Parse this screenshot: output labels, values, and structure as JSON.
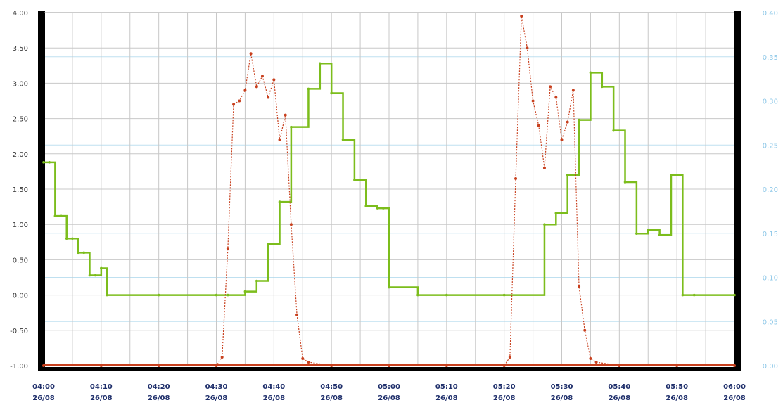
{
  "chart_data": {
    "type": "line",
    "xlim": [
      "04:00",
      "06:00"
    ],
    "ylim_left": [
      -1.0,
      4.0
    ],
    "ylim_right": [
      0.0,
      0.4
    ],
    "grid": true,
    "legend": "none",
    "colors": {
      "green_series": "#7cbd1c",
      "red_series": "#c8401e",
      "left_tick": "#333333",
      "right_tick": "#8ec8e8",
      "x_tick": "#1f2f6b",
      "grid_gray": "#c8c8c8",
      "grid_blue": "#bfe0f0"
    },
    "left_ticks": [
      "4.00",
      "3.50",
      "3.00",
      "2.50",
      "2.00",
      "1.50",
      "1.00",
      "0.50",
      "0.00",
      "-0.50",
      "-1.00"
    ],
    "right_ticks": [
      "0.40",
      "0.35",
      "0.30",
      "0.25",
      "0.20",
      "0.15",
      "0.10",
      "0.05",
      "0.00"
    ],
    "x_ticks": [
      {
        "time": "04:00",
        "date": "26/08"
      },
      {
        "time": "04:10",
        "date": "26/08"
      },
      {
        "time": "04:20",
        "date": "26/08"
      },
      {
        "time": "04:30",
        "date": "26/08"
      },
      {
        "time": "04:40",
        "date": "26/08"
      },
      {
        "time": "04:50",
        "date": "26/08"
      },
      {
        "time": "05:00",
        "date": "26/08"
      },
      {
        "time": "05:10",
        "date": "26/08"
      },
      {
        "time": "05:20",
        "date": "26/08"
      },
      {
        "time": "05:30",
        "date": "26/08"
      },
      {
        "time": "05:40",
        "date": "26/08"
      },
      {
        "time": "05:50",
        "date": "26/08"
      },
      {
        "time": "06:00",
        "date": "26/08"
      }
    ],
    "series": [
      {
        "axis": "left",
        "style": "step-solid",
        "x": [
          "04:00",
          "04:01",
          "04:02",
          "04:03",
          "04:04",
          "04:05",
          "04:06",
          "04:07",
          "04:08",
          "04:09",
          "04:10",
          "04:11",
          "04:20",
          "04:30",
          "04:32",
          "04:35",
          "04:37",
          "04:39",
          "04:41",
          "04:43",
          "04:46",
          "04:48",
          "04:50",
          "04:52",
          "04:54",
          "04:56",
          "04:58",
          "04:59",
          "05:00",
          "05:05",
          "05:10",
          "05:20",
          "05:27",
          "05:29",
          "05:31",
          "05:33",
          "05:35",
          "05:37",
          "05:39",
          "05:41",
          "05:43",
          "05:45",
          "05:47",
          "05:49",
          "05:51",
          "05:53",
          "06:00"
        ],
        "values": [
          1.88,
          1.88,
          1.12,
          1.12,
          0.8,
          0.8,
          0.6,
          0.6,
          0.28,
          0.28,
          0.38,
          0.0,
          0.0,
          0.0,
          0.0,
          0.05,
          0.2,
          0.72,
          1.32,
          2.38,
          2.92,
          3.28,
          2.86,
          2.2,
          1.63,
          1.26,
          1.23,
          1.23,
          0.11,
          0.0,
          0.0,
          0.0,
          1.0,
          1.16,
          1.7,
          2.48,
          3.15,
          2.95,
          2.33,
          1.6,
          0.87,
          0.92,
          0.85,
          1.7,
          0.0,
          0.0,
          0.0
        ]
      },
      {
        "axis": "left",
        "style": "dotted-markers",
        "x": [
          "04:00",
          "04:10",
          "04:20",
          "04:30",
          "04:31",
          "04:32",
          "04:33",
          "04:34",
          "04:35",
          "04:36",
          "04:37",
          "04:38",
          "04:39",
          "04:40",
          "04:41",
          "04:42",
          "04:43",
          "04:44",
          "04:45",
          "04:46",
          "04:50",
          "05:00",
          "05:10",
          "05:20",
          "05:21",
          "05:22",
          "05:23",
          "05:24",
          "05:25",
          "05:26",
          "05:27",
          "05:28",
          "05:29",
          "05:30",
          "05:31",
          "05:32",
          "05:33",
          "05:34",
          "05:35",
          "05:36",
          "05:40",
          "05:50",
          "06:00"
        ],
        "values": [
          -1.0,
          -1.0,
          -1.0,
          -1.0,
          -0.88,
          0.66,
          2.7,
          2.75,
          2.9,
          3.42,
          2.95,
          3.1,
          2.8,
          3.05,
          2.2,
          2.55,
          1.0,
          -0.28,
          -0.9,
          -0.95,
          -1.0,
          -1.0,
          -1.0,
          -1.0,
          -0.88,
          1.65,
          3.95,
          3.5,
          2.75,
          2.4,
          1.8,
          2.95,
          2.8,
          2.2,
          2.45,
          2.9,
          0.12,
          -0.5,
          -0.9,
          -0.95,
          -1.0,
          -1.0,
          -1.0
        ]
      }
    ]
  }
}
